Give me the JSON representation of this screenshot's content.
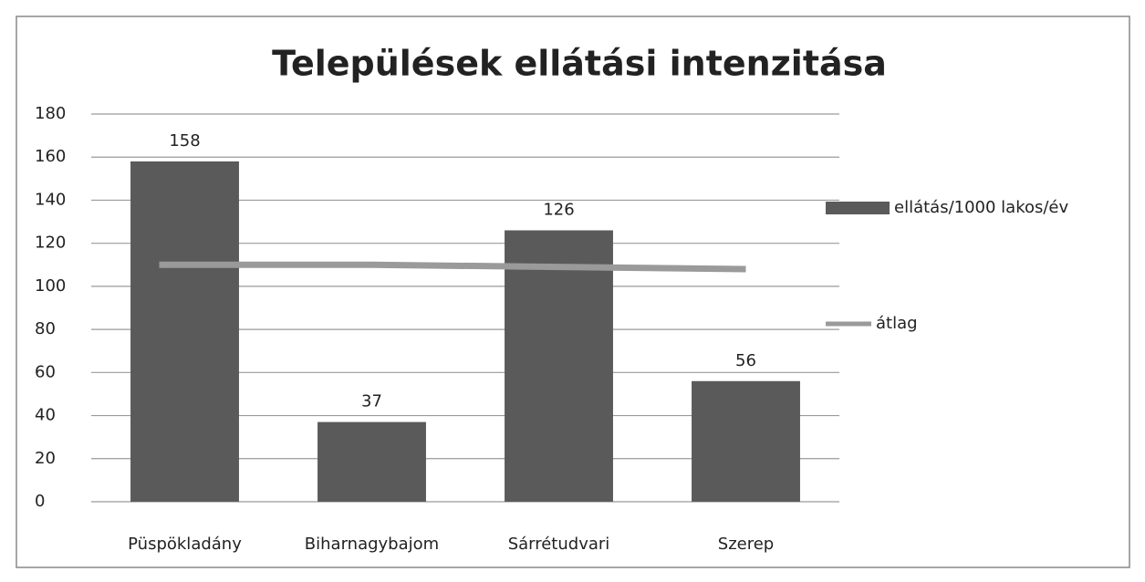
{
  "chart_data": {
    "type": "bar",
    "title": "Települések ellátási intenzitása",
    "categories": [
      "Püspökladány",
      "Biharnagybajom",
      "Sárrétudvari",
      "Szerep"
    ],
    "series": [
      {
        "name": "ellátás/1000 lakos/év",
        "color": "#5a5a5a",
        "type": "bar",
        "values": [
          158,
          37,
          126,
          56
        ]
      },
      {
        "name": "átlag",
        "color": "#9a9a9a",
        "type": "line",
        "values": [
          110,
          110,
          109,
          108
        ]
      }
    ],
    "ylim": [
      0,
      180
    ],
    "yticks": [
      0,
      20,
      40,
      60,
      80,
      100,
      120,
      140,
      160,
      180
    ],
    "grid": true,
    "legend": "right"
  }
}
